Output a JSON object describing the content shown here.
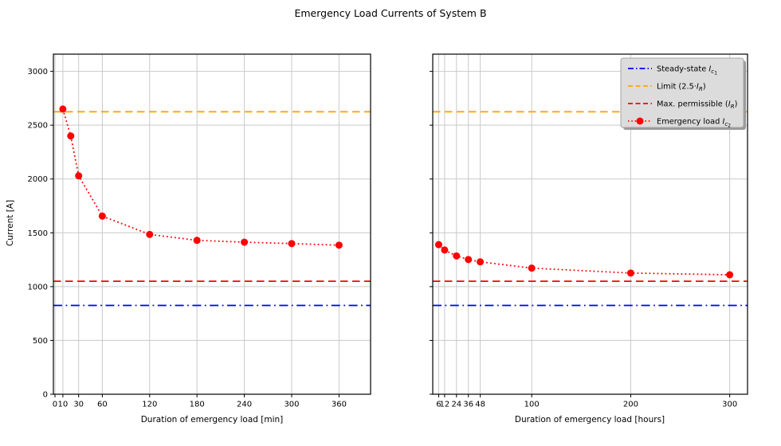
{
  "chart_data": {
    "type": "line",
    "title": "Emergency Load Currents of System B",
    "ylabel": "Current [A]",
    "ylim": [
      0,
      3160
    ],
    "yticks": [
      0,
      500,
      1000,
      1500,
      2000,
      2500,
      3000
    ],
    "grid": true,
    "legend_position": "upper right",
    "colors": {
      "steady_state": "#0000ff",
      "limit": "#ffa500",
      "max_permissible": "#ff0000",
      "emergency_load": "#ff0000",
      "grid": "#c9c9c9",
      "spine": "#000000",
      "legend_bg": "#dcdcdc",
      "legend_border": "#a6a6a6",
      "legend_shadow": "#999999"
    },
    "hlines": [
      {
        "name": "steady-state-line",
        "label": "Steady-state I_c1",
        "value": 825,
        "color": "#0000ff",
        "dash": "dashdot"
      },
      {
        "name": "limit-line",
        "label": "Limit (2.5·I_R)",
        "value": 2625,
        "color": "#ffa500",
        "dash": "dashed"
      },
      {
        "name": "max-permissible-line",
        "label": "Max. permissible (I_R)",
        "value": 1050,
        "color": "#ff0000",
        "dash": "dashed"
      }
    ],
    "subplots": [
      {
        "xlabel": "Duration of emergency load [min]",
        "xlim": [
          -2,
          400
        ],
        "xticks": [
          0,
          10,
          30,
          60,
          120,
          180,
          240,
          300,
          360
        ],
        "series": {
          "name": "emergency-load-min",
          "label": "Emergency load I_c2",
          "color": "#ff0000",
          "dash": "dotted",
          "marker": "circle",
          "x": [
            10,
            20,
            30,
            60,
            120,
            180,
            240,
            300,
            360
          ],
          "y": [
            2650,
            2400,
            2030,
            1655,
            1485,
            1430,
            1413,
            1400,
            1385
          ]
        }
      },
      {
        "xlabel": "Duration of emergency load [hours]",
        "xlim": [
          0,
          318
        ],
        "xticks": [
          6,
          12,
          24,
          36,
          48,
          100,
          200,
          300
        ],
        "series": {
          "name": "emergency-load-hours",
          "label": "Emergency load I_c2",
          "color": "#ff0000",
          "dash": "dotted",
          "marker": "circle",
          "x": [
            6,
            12,
            24,
            36,
            48,
            100,
            200,
            300
          ],
          "y": [
            1390,
            1340,
            1285,
            1252,
            1230,
            1172,
            1126,
            1110
          ]
        }
      }
    ],
    "legend": {
      "entries": [
        {
          "label": "Steady-state I_c1",
          "color": "#0000ff",
          "dash": "dashdot",
          "marker": false,
          "segments": [
            [
              "Steady-state ",
              0,
              0
            ],
            [
              "I",
              0,
              1
            ],
            [
              "c",
              1,
              1
            ],
            [
              "1",
              2,
              0
            ]
          ]
        },
        {
          "label": "Limit (2.5·I_R)",
          "color": "#ffa500",
          "dash": "dashed",
          "marker": false,
          "segments": [
            [
              "Limit (2.5·",
              0,
              0
            ],
            [
              "I",
              0,
              1
            ],
            [
              "R",
              1,
              1
            ],
            [
              ")",
              0,
              0
            ]
          ]
        },
        {
          "label": "Max. permissible (I_R)",
          "color": "#ff0000",
          "dash": "dashed",
          "marker": false,
          "segments": [
            [
              "Max. permissible (",
              0,
              0
            ],
            [
              "I",
              0,
              1
            ],
            [
              "R",
              1,
              1
            ],
            [
              ")",
              0,
              0
            ]
          ]
        },
        {
          "label": "Emergency load I_c2",
          "color": "#ff0000",
          "dash": "dotted",
          "marker": true,
          "segments": [
            [
              "Emergency load ",
              0,
              0
            ],
            [
              "I",
              0,
              1
            ],
            [
              "c",
              1,
              1
            ],
            [
              "2",
              2,
              0
            ]
          ]
        }
      ]
    }
  }
}
